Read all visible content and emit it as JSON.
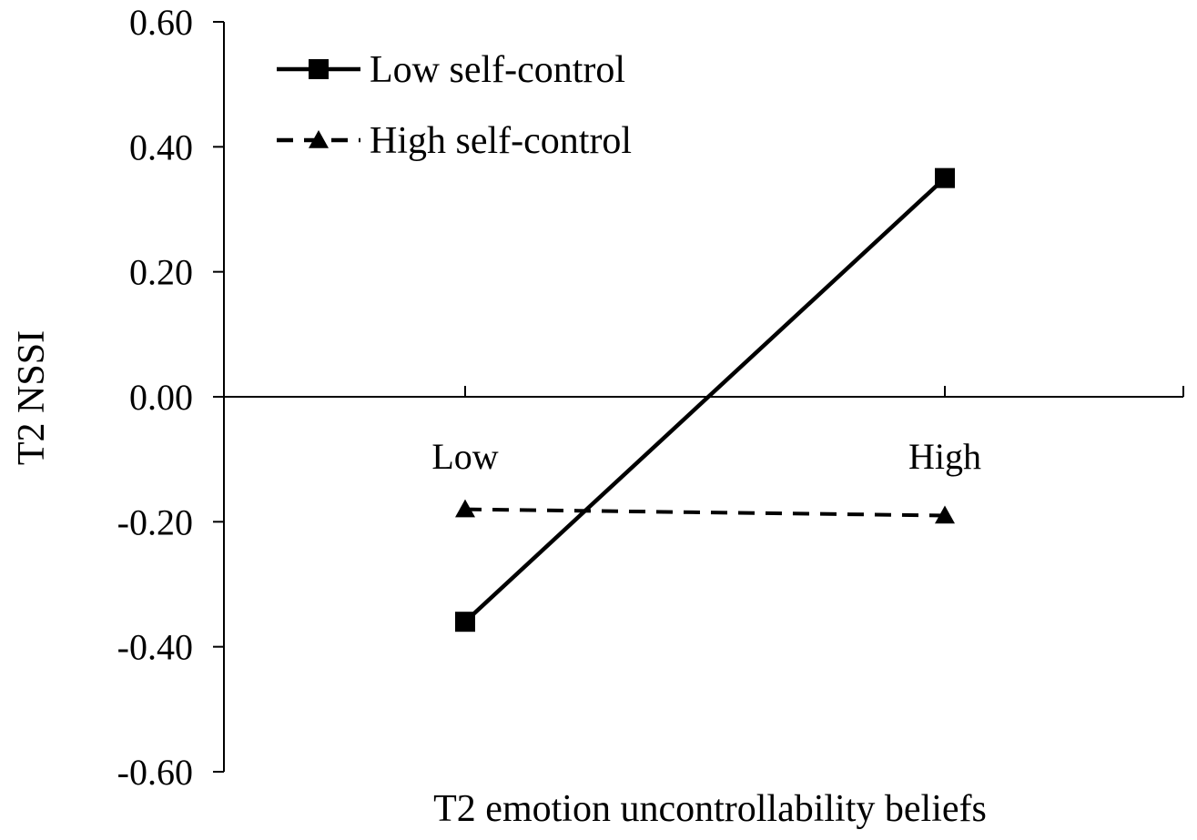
{
  "chart_data": {
    "type": "line",
    "xlabel": "T2 emotion uncontrollability beliefs",
    "ylabel": "T2 NSSI",
    "categories": [
      "Low",
      "High"
    ],
    "yticks": [
      "0.60",
      "0.40",
      "0.20",
      "0.00",
      "-0.20",
      "-0.40",
      "-0.60"
    ],
    "ylim": [
      -0.6,
      0.6
    ],
    "grid": false,
    "legend_position": "top-left",
    "series": [
      {
        "name": "Low self-control",
        "values": [
          -0.36,
          0.35
        ],
        "line_style": "solid",
        "marker": "square",
        "color": "#000000"
      },
      {
        "name": "High self-control",
        "values": [
          -0.18,
          -0.19
        ],
        "line_style": "dashed",
        "marker": "triangle",
        "color": "#000000"
      }
    ]
  }
}
